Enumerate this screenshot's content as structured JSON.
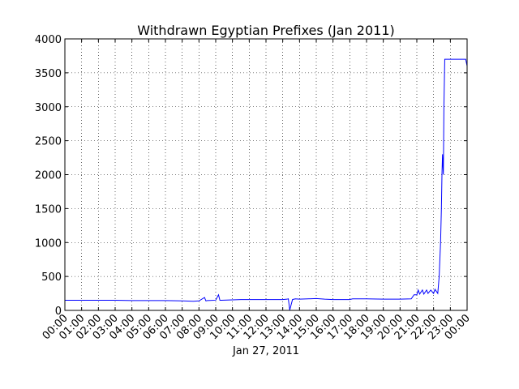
{
  "chart_data": {
    "type": "line",
    "title": "Withdrawn Egyptian Prefixes (Jan 2011)",
    "xlabel": "Jan 27, 2011",
    "ylabel": "",
    "xlim": [
      "00:00",
      "24:00"
    ],
    "ylim": [
      0,
      4000
    ],
    "grid": true,
    "line_color": "#0000ff",
    "y_ticks": [
      "0",
      "500",
      "1000",
      "1500",
      "2000",
      "2500",
      "3000",
      "3500",
      "4000"
    ],
    "x_ticks": [
      "00:00",
      "01:00",
      "02:00",
      "03:00",
      "04:00",
      "05:00",
      "06:00",
      "07:00",
      "08:00",
      "09:00",
      "10:00",
      "11:00",
      "12:00",
      "13:00",
      "14:00",
      "15:00",
      "16:00",
      "17:00",
      "18:00",
      "19:00",
      "20:00",
      "21:00",
      "22:00",
      "23:00",
      "00:00"
    ],
    "series": [
      {
        "x": [
          "00:00",
          "01:00",
          "02:00",
          "03:00",
          "04:00",
          "05:00",
          "06:00",
          "07:00",
          "07:40",
          "08:00",
          "08:20",
          "08:25",
          "08:30",
          "09:00",
          "09:10",
          "09:15",
          "09:20",
          "10:00",
          "10:30",
          "11:00",
          "12:00",
          "13:00",
          "13:15",
          "13:20",
          "13:25",
          "13:35",
          "13:45",
          "14:00",
          "14:30",
          "15:00",
          "15:30",
          "16:00",
          "17:00",
          "17:10",
          "18:00",
          "19:00",
          "20:00",
          "20:40",
          "20:50",
          "21:00",
          "21:05",
          "21:10",
          "21:20",
          "21:25",
          "21:35",
          "21:40",
          "21:50",
          "22:00",
          "22:05",
          "22:15",
          "22:20",
          "22:25",
          "22:28",
          "22:30",
          "22:32",
          "22:35",
          "22:37",
          "22:40",
          "22:43",
          "22:45",
          "22:48",
          "22:50",
          "23:00",
          "23:30",
          "23:55",
          "24:00"
        ],
        "y": [
          150,
          150,
          150,
          150,
          145,
          145,
          145,
          140,
          135,
          140,
          190,
          140,
          145,
          150,
          230,
          150,
          150,
          155,
          160,
          160,
          160,
          160,
          165,
          170,
          5,
          160,
          170,
          165,
          170,
          175,
          165,
          160,
          160,
          170,
          170,
          165,
          165,
          170,
          230,
          230,
          300,
          240,
          300,
          240,
          300,
          250,
          300,
          250,
          310,
          250,
          500,
          1000,
          1500,
          2000,
          2300,
          2000,
          3000,
          3700,
          3700,
          3700,
          3700,
          3700,
          3700,
          3700,
          3700,
          3600
        ]
      }
    ]
  }
}
